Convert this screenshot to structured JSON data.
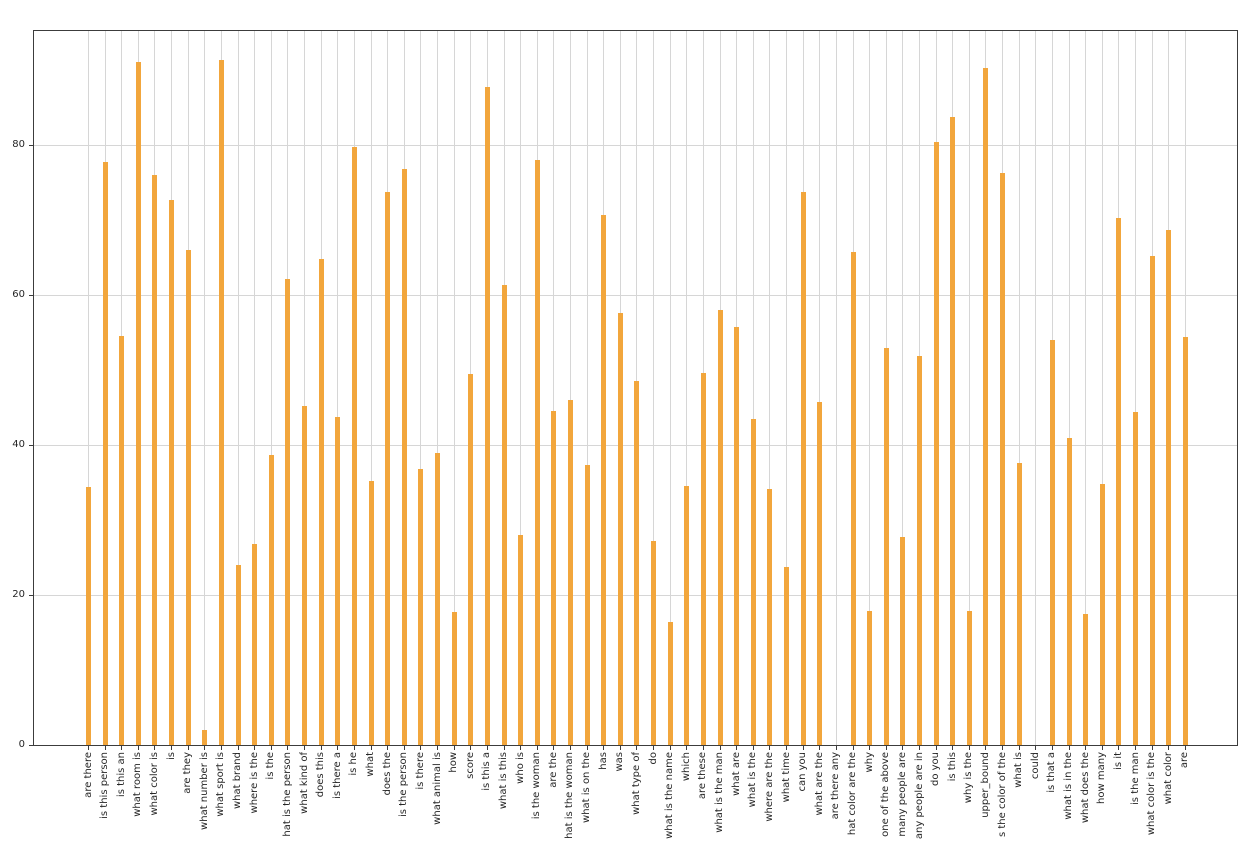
{
  "figure": {
    "background_color": "#ffffff",
    "plot_background_color": "#ffffff",
    "spine_color": "#3c3c3c",
    "grid_color": "#d6d6d6"
  },
  "chart_data": {
    "type": "bar",
    "title": "",
    "xlabel": "",
    "ylabel": "",
    "legend_position": "none",
    "grid": true,
    "x_tick_label_rotation": 90,
    "bar_color": "#f2a63c",
    "ylim": [
      0,
      95.3
    ],
    "yticks": [
      0,
      20,
      40,
      60,
      80
    ],
    "categories": [
      "are there",
      "is this person",
      "is this an",
      "what room is",
      "what color is",
      "is",
      "are they",
      "what number is",
      "what sport is",
      "what brand",
      "where is the",
      "is the",
      "hat is the person",
      "what kind of",
      "does this",
      "is there a",
      "is he",
      "what",
      "does the",
      "is the person",
      "is there",
      "what animal is",
      "how",
      "score",
      "is this a",
      "what is this",
      "who is",
      "is the woman",
      "are the",
      "hat is the woman",
      "what is on the",
      "has",
      "was",
      "what type of",
      "do",
      "what is the name",
      "which",
      "are these",
      "what is the man",
      "what are",
      "what is the",
      "where are the",
      "what time",
      "can you",
      "what are the",
      "are there any",
      "hat color are the",
      "why",
      "one of the above",
      "many people are",
      "any people are in",
      "do you",
      "is this",
      "why is the",
      "upper_bound",
      "s the color of the",
      "what is",
      "could",
      "is that a",
      "what is in the",
      "what does the",
      "how many",
      "is it",
      "is the man",
      "what color is the",
      "what color",
      "are"
    ],
    "values": [
      34.4,
      77.8,
      54.5,
      91.1,
      76.0,
      72.7,
      66.0,
      2.0,
      91.3,
      24.0,
      26.8,
      38.7,
      62.2,
      45.2,
      64.8,
      43.8,
      79.8,
      35.2,
      73.8,
      76.8,
      36.8,
      39.0,
      17.7,
      49.5,
      87.7,
      61.4,
      28.0,
      78.0,
      44.6,
      46.0,
      37.3,
      70.7,
      57.6,
      48.5,
      27.2,
      16.4,
      34.5,
      49.6,
      58.0,
      55.8,
      43.5,
      34.2,
      23.8,
      73.8,
      45.8,
      0.0,
      65.7,
      17.9,
      53.0,
      27.8,
      51.9,
      80.4,
      83.8,
      17.9,
      90.3,
      76.3,
      37.6,
      0.0,
      54.0,
      41.0,
      17.5,
      34.8,
      70.3,
      44.4,
      65.2,
      68.7,
      54.4
    ]
  }
}
